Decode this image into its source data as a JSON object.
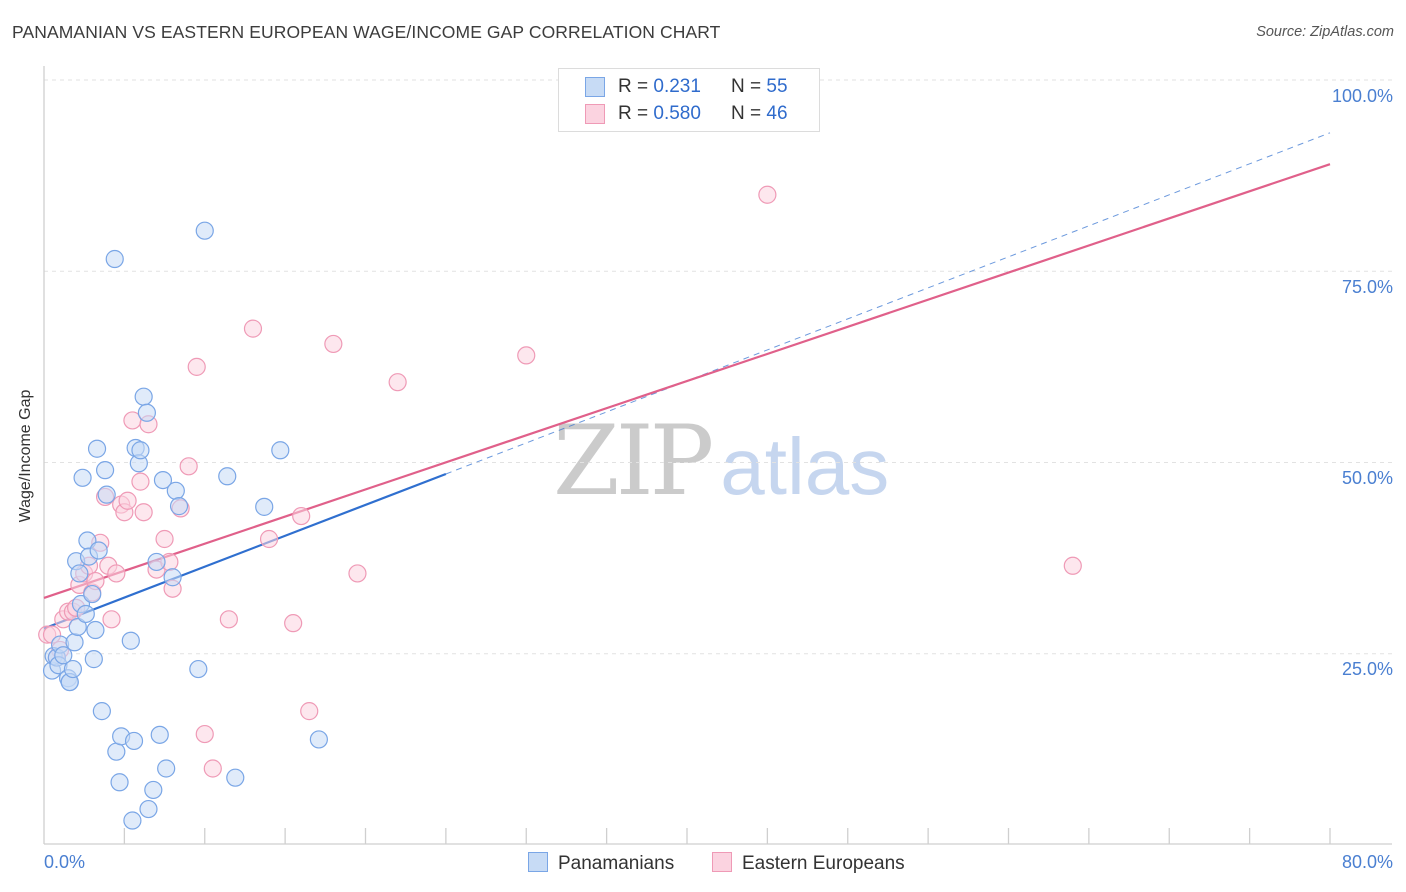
{
  "header": {
    "title": "PANAMANIAN VS EASTERN EUROPEAN WAGE/INCOME GAP CORRELATION CHART",
    "source": "Source: ZipAtlas.com"
  },
  "watermark": {
    "zip": "ZIP",
    "atlas": "atlas"
  },
  "legend": {
    "rows": [
      {
        "r_label": "R =",
        "r_value": "0.231",
        "n_label": "N =",
        "n_value": "55",
        "fill": "#c7dbf5",
        "stroke": "#7aa6e6"
      },
      {
        "r_label": "R =",
        "r_value": "0.580",
        "n_label": "N =",
        "n_value": "46",
        "fill": "#fbd3e0",
        "stroke": "#ef9ab6"
      }
    ]
  },
  "bottom_legend": {
    "series1": "Panamanians",
    "series2": "Eastern Europeans"
  },
  "chart_data": {
    "type": "scatter",
    "title": "PANAMANIAN VS EASTERN EUROPEAN WAGE/INCOME GAP CORRELATION CHART",
    "xlabel": "",
    "ylabel": "Wage/Income Gap",
    "xlim": [
      0,
      80
    ],
    "ylim": [
      0,
      100
    ],
    "x_tick_labels": [
      "0.0%",
      "80.0%"
    ],
    "y_ticks": [
      25,
      50,
      75,
      100
    ],
    "y_tick_labels": [
      "25.0%",
      "50.0%",
      "75.0%",
      "100.0%"
    ],
    "grid": true,
    "series": [
      {
        "name": "Panamanians",
        "color": "#7aa6e6",
        "fill": "#c7dbf5",
        "line_color": "#2f6fcf",
        "R": 0.231,
        "N": 55,
        "trend": {
          "x0": 0,
          "y0": 28.3,
          "x1": 25,
          "y1": 48.5
        },
        "trend_extension": {
          "x0": 25,
          "y0": 48.5,
          "x1": 80,
          "y1": 93.1
        },
        "x": [
          0.5,
          0.6,
          0.8,
          0.9,
          1.0,
          1.2,
          1.5,
          1.6,
          1.6,
          1.8,
          1.9,
          2.0,
          2.1,
          2.2,
          2.3,
          2.4,
          2.6,
          2.7,
          2.8,
          3.0,
          3.1,
          3.2,
          3.3,
          3.4,
          3.6,
          3.8,
          3.9,
          4.4,
          4.5,
          4.7,
          4.8,
          5.4,
          5.5,
          5.6,
          5.7,
          5.9,
          6.0,
          6.2,
          6.4,
          6.5,
          6.8,
          7.0,
          7.2,
          7.4,
          7.6,
          8.0,
          8.2,
          8.4,
          9.6,
          10.0,
          11.4,
          11.9,
          13.7,
          14.7,
          17.1
        ],
        "y": [
          22.8,
          24.7,
          24.5,
          23.5,
          26.2,
          24.8,
          21.8,
          21.3,
          21.3,
          23.0,
          26.5,
          37.1,
          28.5,
          35.5,
          31.5,
          48.0,
          30.2,
          39.8,
          37.7,
          32.8,
          24.3,
          28.1,
          51.8,
          38.5,
          17.5,
          49.0,
          45.8,
          76.6,
          12.2,
          8.2,
          14.2,
          26.7,
          3.2,
          13.6,
          51.9,
          49.9,
          51.6,
          58.6,
          56.5,
          4.7,
          7.2,
          37.0,
          14.4,
          47.7,
          10.0,
          35.0,
          46.3,
          44.3,
          23.0,
          80.3,
          48.2,
          8.8,
          44.2,
          51.6,
          13.8
        ]
      },
      {
        "name": "Eastern Europeans",
        "color": "#ef9ab6",
        "fill": "#fbd3e0",
        "line_color": "#e0608a",
        "R": 0.58,
        "N": 46,
        "trend": {
          "x0": 0,
          "y0": 32.3,
          "x1": 80,
          "y1": 89.0
        },
        "x": [
          0.2,
          0.5,
          0.8,
          1.0,
          1.2,
          1.5,
          1.8,
          2.0,
          2.2,
          2.5,
          2.8,
          3.0,
          3.2,
          3.5,
          3.8,
          4.0,
          4.2,
          4.5,
          4.8,
          5.0,
          5.2,
          5.5,
          6.0,
          6.2,
          6.5,
          7.0,
          7.5,
          7.8,
          8.0,
          8.5,
          9.0,
          9.5,
          10.0,
          10.5,
          11.5,
          13.0,
          14.0,
          15.5,
          16.0,
          16.5,
          18.0,
          19.5,
          22.0,
          30.0,
          45.0,
          64.0
        ],
        "y": [
          27.5,
          27.5,
          24.5,
          25.5,
          29.5,
          30.5,
          30.5,
          31.0,
          34.0,
          35.5,
          36.5,
          33.0,
          34.5,
          39.5,
          45.5,
          36.5,
          29.5,
          35.5,
          44.5,
          43.5,
          45.0,
          55.5,
          47.5,
          43.5,
          55.0,
          36.0,
          40.0,
          37.0,
          33.5,
          44.0,
          49.5,
          62.5,
          14.5,
          10.0,
          29.5,
          67.5,
          40.0,
          29.0,
          43.0,
          17.5,
          65.5,
          35.5,
          60.5,
          64.0,
          85.0,
          36.5
        ]
      }
    ]
  }
}
